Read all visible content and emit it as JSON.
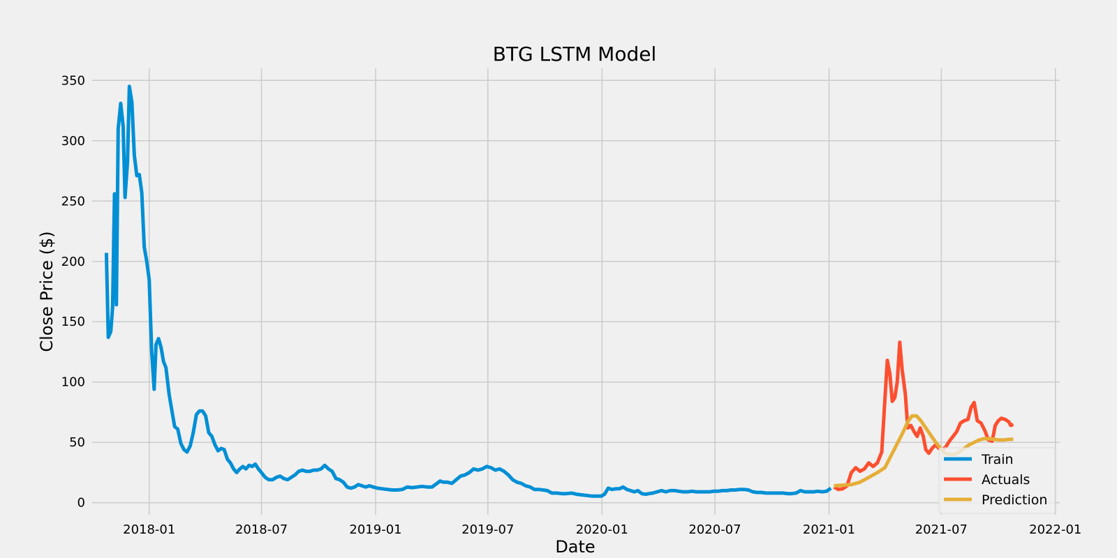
{
  "chart_data": {
    "type": "line",
    "title": "BTG LSTM Model",
    "xlabel": "Date",
    "ylabel": "Close Price ($)",
    "xlim": [
      "2017-10-01",
      "2022-01-08"
    ],
    "ylim": [
      -10,
      360
    ],
    "x_ticks": [
      "2018-01",
      "2018-07",
      "2019-01",
      "2019-07",
      "2020-01",
      "2020-07",
      "2021-01",
      "2021-07",
      "2022-01"
    ],
    "y_ticks": [
      0,
      50,
      100,
      150,
      200,
      250,
      300,
      350
    ],
    "grid": true,
    "legend_position": "bottom-right",
    "series": [
      {
        "name": "Train",
        "color": "#008fd5",
        "points": [
          [
            "2017-10-24",
            207
          ],
          [
            "2017-10-27",
            137
          ],
          [
            "2017-10-31",
            142
          ],
          [
            "2017-11-03",
            162
          ],
          [
            "2017-11-06",
            256
          ],
          [
            "2017-11-09",
            164
          ],
          [
            "2017-11-12",
            310
          ],
          [
            "2017-11-16",
            331
          ],
          [
            "2017-11-20",
            312
          ],
          [
            "2017-11-23",
            253
          ],
          [
            "2017-11-27",
            282
          ],
          [
            "2017-11-30",
            345
          ],
          [
            "2017-12-04",
            332
          ],
          [
            "2017-12-08",
            288
          ],
          [
            "2017-12-12",
            271
          ],
          [
            "2017-12-16",
            272
          ],
          [
            "2017-12-20",
            257
          ],
          [
            "2017-12-24",
            212
          ],
          [
            "2017-12-28",
            200
          ],
          [
            "2018-01-01",
            185
          ],
          [
            "2018-01-05",
            125
          ],
          [
            "2018-01-09",
            94
          ],
          [
            "2018-01-12",
            131
          ],
          [
            "2018-01-16",
            136
          ],
          [
            "2018-01-20",
            129
          ],
          [
            "2018-01-24",
            117
          ],
          [
            "2018-01-28",
            112
          ],
          [
            "2018-02-02",
            90
          ],
          [
            "2018-02-07",
            75
          ],
          [
            "2018-02-11",
            63
          ],
          [
            "2018-02-16",
            61
          ],
          [
            "2018-02-21",
            49
          ],
          [
            "2018-02-26",
            44
          ],
          [
            "2018-03-03",
            42
          ],
          [
            "2018-03-08",
            47
          ],
          [
            "2018-03-13",
            58
          ],
          [
            "2018-03-18",
            73
          ],
          [
            "2018-03-23",
            76
          ],
          [
            "2018-03-28",
            76
          ],
          [
            "2018-04-02",
            72
          ],
          [
            "2018-04-07",
            58
          ],
          [
            "2018-04-12",
            55
          ],
          [
            "2018-04-17",
            48
          ],
          [
            "2018-04-22",
            43
          ],
          [
            "2018-04-27",
            45
          ],
          [
            "2018-05-02",
            44
          ],
          [
            "2018-05-07",
            36
          ],
          [
            "2018-05-12",
            33
          ],
          [
            "2018-05-17",
            28
          ],
          [
            "2018-05-22",
            25
          ],
          [
            "2018-05-27",
            28
          ],
          [
            "2018-06-01",
            30
          ],
          [
            "2018-06-06",
            28
          ],
          [
            "2018-06-11",
            31
          ],
          [
            "2018-06-16",
            30
          ],
          [
            "2018-06-21",
            32
          ],
          [
            "2018-06-26",
            28
          ],
          [
            "2018-07-01",
            25
          ],
          [
            "2018-07-07",
            21
          ],
          [
            "2018-07-13",
            19
          ],
          [
            "2018-07-19",
            19
          ],
          [
            "2018-07-25",
            21
          ],
          [
            "2018-07-31",
            22
          ],
          [
            "2018-08-06",
            20
          ],
          [
            "2018-08-12",
            19
          ],
          [
            "2018-08-18",
            21
          ],
          [
            "2018-08-24",
            23
          ],
          [
            "2018-08-30",
            26
          ],
          [
            "2018-09-05",
            27
          ],
          [
            "2018-09-11",
            26
          ],
          [
            "2018-09-17",
            26
          ],
          [
            "2018-09-23",
            27
          ],
          [
            "2018-09-29",
            27
          ],
          [
            "2018-10-05",
            28
          ],
          [
            "2018-10-11",
            31
          ],
          [
            "2018-10-17",
            28
          ],
          [
            "2018-10-23",
            26
          ],
          [
            "2018-10-29",
            20
          ],
          [
            "2018-11-04",
            19
          ],
          [
            "2018-11-10",
            17
          ],
          [
            "2018-11-16",
            13
          ],
          [
            "2018-11-22",
            12
          ],
          [
            "2018-11-28",
            13
          ],
          [
            "2018-12-04",
            15
          ],
          [
            "2018-12-10",
            14
          ],
          [
            "2018-12-16",
            13
          ],
          [
            "2018-12-22",
            14
          ],
          [
            "2018-12-28",
            13
          ],
          [
            "2019-01-04",
            12
          ],
          [
            "2019-01-12",
            11.5
          ],
          [
            "2019-01-20",
            11
          ],
          [
            "2019-01-28",
            10.5
          ],
          [
            "2019-02-05",
            10.5
          ],
          [
            "2019-02-13",
            11
          ],
          [
            "2019-02-21",
            13
          ],
          [
            "2019-03-01",
            12.5
          ],
          [
            "2019-03-09",
            13
          ],
          [
            "2019-03-17",
            13.5
          ],
          [
            "2019-03-25",
            13
          ],
          [
            "2019-04-02",
            13
          ],
          [
            "2019-04-10",
            16
          ],
          [
            "2019-04-15",
            18
          ],
          [
            "2019-04-20",
            17
          ],
          [
            "2019-04-27",
            17
          ],
          [
            "2019-05-04",
            16
          ],
          [
            "2019-05-11",
            19
          ],
          [
            "2019-05-18",
            22
          ],
          [
            "2019-05-25",
            23
          ],
          [
            "2019-06-01",
            25
          ],
          [
            "2019-06-08",
            28
          ],
          [
            "2019-06-15",
            27
          ],
          [
            "2019-06-22",
            28
          ],
          [
            "2019-06-29",
            30
          ],
          [
            "2019-07-06",
            29
          ],
          [
            "2019-07-13",
            27
          ],
          [
            "2019-07-20",
            28
          ],
          [
            "2019-07-27",
            26
          ],
          [
            "2019-08-03",
            23
          ],
          [
            "2019-08-10",
            19
          ],
          [
            "2019-08-17",
            17
          ],
          [
            "2019-08-24",
            16
          ],
          [
            "2019-08-31",
            14
          ],
          [
            "2019-09-07",
            13
          ],
          [
            "2019-09-14",
            11
          ],
          [
            "2019-09-21",
            11
          ],
          [
            "2019-09-28",
            10.5
          ],
          [
            "2019-10-05",
            10
          ],
          [
            "2019-10-12",
            8
          ],
          [
            "2019-10-20",
            8
          ],
          [
            "2019-10-28",
            7.5
          ],
          [
            "2019-11-05",
            7.5
          ],
          [
            "2019-11-13",
            8
          ],
          [
            "2019-11-21",
            7
          ],
          [
            "2019-11-29",
            6.5
          ],
          [
            "2019-12-07",
            6
          ],
          [
            "2019-12-15",
            5.5
          ],
          [
            "2019-12-23",
            5.5
          ],
          [
            "2019-12-31",
            5.5
          ],
          [
            "2020-01-05",
            7
          ],
          [
            "2020-01-11",
            12
          ],
          [
            "2020-01-17",
            11
          ],
          [
            "2020-01-23",
            11.5
          ],
          [
            "2020-01-29",
            11.5
          ],
          [
            "2020-02-04",
            13
          ],
          [
            "2020-02-10",
            11
          ],
          [
            "2020-02-16",
            10
          ],
          [
            "2020-02-22",
            9
          ],
          [
            "2020-02-28",
            10
          ],
          [
            "2020-03-05",
            7.5
          ],
          [
            "2020-03-11",
            7
          ],
          [
            "2020-03-17",
            7.5
          ],
          [
            "2020-03-23",
            8
          ],
          [
            "2020-03-30",
            9
          ],
          [
            "2020-04-06",
            10
          ],
          [
            "2020-04-13",
            9
          ],
          [
            "2020-04-20",
            10
          ],
          [
            "2020-04-27",
            10
          ],
          [
            "2020-05-04",
            9.5
          ],
          [
            "2020-05-11",
            9
          ],
          [
            "2020-05-18",
            9
          ],
          [
            "2020-05-25",
            9.5
          ],
          [
            "2020-06-01",
            9
          ],
          [
            "2020-06-08",
            9
          ],
          [
            "2020-06-15",
            9
          ],
          [
            "2020-06-22",
            9
          ],
          [
            "2020-06-29",
            9.5
          ],
          [
            "2020-07-06",
            9.5
          ],
          [
            "2020-07-13",
            10
          ],
          [
            "2020-07-20",
            10
          ],
          [
            "2020-07-27",
            10.5
          ],
          [
            "2020-08-03",
            10.5
          ],
          [
            "2020-08-10",
            11
          ],
          [
            "2020-08-17",
            11
          ],
          [
            "2020-08-24",
            10.5
          ],
          [
            "2020-08-31",
            9
          ],
          [
            "2020-09-07",
            8.5
          ],
          [
            "2020-09-14",
            8.5
          ],
          [
            "2020-09-21",
            8
          ],
          [
            "2020-09-28",
            8
          ],
          [
            "2020-10-05",
            8
          ],
          [
            "2020-10-12",
            8
          ],
          [
            "2020-10-19",
            8
          ],
          [
            "2020-10-26",
            7.5
          ],
          [
            "2020-11-02",
            7.5
          ],
          [
            "2020-11-09",
            8
          ],
          [
            "2020-11-16",
            10
          ],
          [
            "2020-11-23",
            9
          ],
          [
            "2020-11-30",
            9
          ],
          [
            "2020-12-07",
            9
          ],
          [
            "2020-12-14",
            9.5
          ],
          [
            "2020-12-21",
            9
          ],
          [
            "2020-12-28",
            9.5
          ],
          [
            "2021-01-04",
            12
          ]
        ]
      },
      {
        "name": "Actuals",
        "color": "#fc4f30",
        "points": [
          [
            "2021-01-09",
            13
          ],
          [
            "2021-01-16",
            11
          ],
          [
            "2021-01-23",
            11.5
          ],
          [
            "2021-01-30",
            14
          ],
          [
            "2021-02-06",
            25
          ],
          [
            "2021-02-13",
            29
          ],
          [
            "2021-02-20",
            26
          ],
          [
            "2021-02-27",
            28
          ],
          [
            "2021-03-06",
            33
          ],
          [
            "2021-03-13",
            30
          ],
          [
            "2021-03-20",
            33
          ],
          [
            "2021-03-27",
            42
          ],
          [
            "2021-04-01",
            85
          ],
          [
            "2021-04-05",
            118
          ],
          [
            "2021-04-09",
            107
          ],
          [
            "2021-04-13",
            84
          ],
          [
            "2021-04-17",
            87
          ],
          [
            "2021-04-21",
            100
          ],
          [
            "2021-04-25",
            133
          ],
          [
            "2021-04-29",
            110
          ],
          [
            "2021-05-04",
            90
          ],
          [
            "2021-05-08",
            62
          ],
          [
            "2021-05-13",
            64
          ],
          [
            "2021-05-18",
            59
          ],
          [
            "2021-05-23",
            55
          ],
          [
            "2021-05-28",
            62
          ],
          [
            "2021-06-02",
            55
          ],
          [
            "2021-06-06",
            44
          ],
          [
            "2021-06-11",
            41
          ],
          [
            "2021-06-16",
            45
          ],
          [
            "2021-06-22",
            48
          ],
          [
            "2021-06-27",
            45
          ],
          [
            "2021-07-02",
            44
          ],
          [
            "2021-07-08",
            46
          ],
          [
            "2021-07-14",
            51
          ],
          [
            "2021-07-20",
            55
          ],
          [
            "2021-07-26",
            59
          ],
          [
            "2021-08-01",
            66
          ],
          [
            "2021-08-07",
            68
          ],
          [
            "2021-08-13",
            69
          ],
          [
            "2021-08-18",
            79
          ],
          [
            "2021-08-23",
            83
          ],
          [
            "2021-08-28",
            68
          ],
          [
            "2021-09-03",
            66
          ],
          [
            "2021-09-09",
            60
          ],
          [
            "2021-09-15",
            52
          ],
          [
            "2021-09-21",
            51
          ],
          [
            "2021-09-26",
            64
          ],
          [
            "2021-10-01",
            68
          ],
          [
            "2021-10-06",
            70
          ],
          [
            "2021-10-12",
            69
          ],
          [
            "2021-10-18",
            67
          ],
          [
            "2021-10-21",
            64
          ],
          [
            "2021-10-25",
            65
          ]
        ]
      },
      {
        "name": "Prediction",
        "color": "#e5ae38",
        "points": [
          [
            "2021-01-09",
            14
          ],
          [
            "2021-01-23",
            14.5
          ],
          [
            "2021-02-06",
            15
          ],
          [
            "2021-02-20",
            17
          ],
          [
            "2021-03-06",
            21
          ],
          [
            "2021-03-20",
            25
          ],
          [
            "2021-04-01",
            29
          ],
          [
            "2021-04-10",
            38
          ],
          [
            "2021-04-20",
            48
          ],
          [
            "2021-04-30",
            58
          ],
          [
            "2021-05-08",
            67
          ],
          [
            "2021-05-15",
            72
          ],
          [
            "2021-05-22",
            72
          ],
          [
            "2021-05-29",
            68
          ],
          [
            "2021-06-06",
            62
          ],
          [
            "2021-06-14",
            56
          ],
          [
            "2021-06-22",
            50
          ],
          [
            "2021-06-30",
            45
          ],
          [
            "2021-07-07",
            41
          ],
          [
            "2021-07-14",
            40
          ],
          [
            "2021-07-22",
            40
          ],
          [
            "2021-07-30",
            42
          ],
          [
            "2021-08-07",
            45
          ],
          [
            "2021-08-15",
            48
          ],
          [
            "2021-08-23",
            50
          ],
          [
            "2021-08-31",
            52
          ],
          [
            "2021-09-08",
            53
          ],
          [
            "2021-09-16",
            53
          ],
          [
            "2021-09-24",
            52.5
          ],
          [
            "2021-10-02",
            52
          ],
          [
            "2021-10-10",
            52
          ],
          [
            "2021-10-18",
            52.5
          ],
          [
            "2021-10-25",
            52.5
          ]
        ]
      }
    ]
  }
}
